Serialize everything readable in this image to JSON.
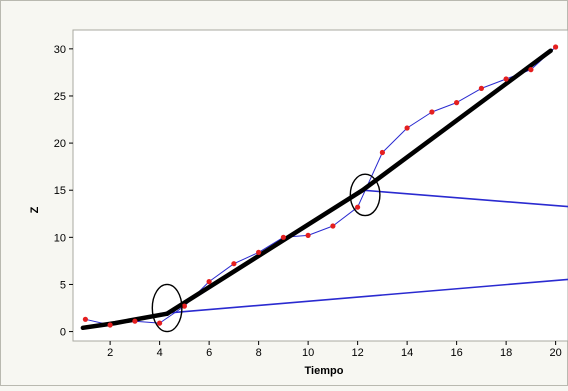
{
  "chart_data": {
    "type": "line",
    "title": "",
    "xlabel": "Tiempo",
    "ylabel": "Z",
    "xlim": [
      0.5,
      20.5
    ],
    "ylim": [
      -1,
      32
    ],
    "x_ticks": [
      2,
      4,
      6,
      8,
      10,
      12,
      14,
      16,
      18,
      20
    ],
    "y_ticks": [
      0,
      5,
      10,
      15,
      20,
      25,
      30
    ],
    "grid": false,
    "legend": "none",
    "series": [
      {
        "role": "observed",
        "color": "#2a2ad0",
        "marker_color": "#e41f1f",
        "x": [
          1,
          2,
          3,
          4,
          5,
          6,
          7,
          8,
          9,
          10,
          11,
          12,
          13,
          14,
          15,
          16,
          17,
          18,
          19,
          20
        ],
        "y": [
          1.3,
          0.7,
          1.1,
          0.9,
          2.7,
          5.3,
          7.2,
          8.4,
          10.0,
          10.2,
          11.2,
          13.2,
          19.0,
          21.6,
          23.3,
          24.3,
          25.8,
          26.8,
          27.8,
          30.2
        ]
      },
      {
        "role": "fit-early",
        "color": "#000000",
        "x": [
          0.9,
          2.2,
          4.3
        ],
        "y": [
          0.4,
          0.9,
          1.9
        ]
      },
      {
        "role": "fit-main",
        "color": "#000000",
        "x": [
          4.3,
          12.2,
          19.8
        ],
        "y": [
          1.9,
          15.0,
          29.8
        ]
      },
      {
        "role": "trend-upper",
        "color": "#2a2ad0",
        "x": [
          12.2,
          20.8
        ],
        "y": [
          15.0,
          13.2
        ]
      },
      {
        "role": "trend-lower",
        "color": "#2a2ad0",
        "x": [
          4.0,
          20.8
        ],
        "y": [
          1.9,
          5.6
        ]
      }
    ],
    "annotations": [
      {
        "type": "ellipse",
        "cx": 4.3,
        "cy": 2.5,
        "rx": 0.6,
        "ry": 2.5
      },
      {
        "type": "ellipse",
        "cx": 12.3,
        "cy": 14.5,
        "rx": 0.6,
        "ry": 2.2
      }
    ]
  }
}
